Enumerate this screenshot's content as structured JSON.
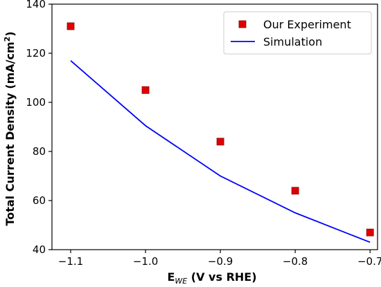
{
  "chart_data": {
    "type": "scatter",
    "xlabel": {
      "main": "E",
      "sub": "WE",
      "rest": " (V vs RHE)"
    },
    "ylabel": {
      "main": "Total Current Density (mA/cm",
      "sup": "2",
      "rest": ")"
    },
    "xlim": [
      -1.125,
      -0.69
    ],
    "ylim": [
      40,
      140
    ],
    "xticks": [
      -1.1,
      -1.0,
      -0.9,
      -0.8,
      -0.7
    ],
    "xtick_labels": [
      "−1.1",
      "−1.0",
      "−0.9",
      "−0.8",
      "−0.7"
    ],
    "yticks": [
      40,
      60,
      80,
      100,
      120,
      140
    ],
    "ytick_labels": [
      "40",
      "60",
      "80",
      "100",
      "120",
      "140"
    ],
    "grid": false,
    "legend_position": "top-right",
    "series": [
      {
        "name": "Our Experiment",
        "kind": "scatter",
        "marker": "square",
        "color": "#e00000",
        "x": [
          -1.1,
          -1.0,
          -0.9,
          -0.8,
          -0.7
        ],
        "y": [
          131,
          105,
          84,
          64,
          47
        ]
      },
      {
        "name": "Simulation",
        "kind": "line",
        "color": "#0000ff",
        "x": [
          -1.1,
          -1.0,
          -0.9,
          -0.8,
          -0.7
        ],
        "y": [
          117,
          90.5,
          70,
          55,
          43
        ]
      }
    ]
  }
}
